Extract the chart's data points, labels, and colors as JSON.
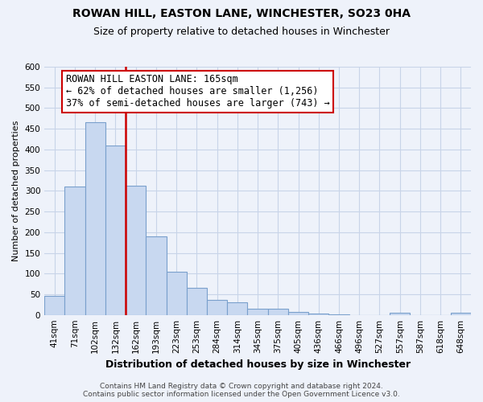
{
  "title": "ROWAN HILL, EASTON LANE, WINCHESTER, SO23 0HA",
  "subtitle": "Size of property relative to detached houses in Winchester",
  "xlabel": "Distribution of detached houses by size in Winchester",
  "ylabel": "Number of detached properties",
  "bar_values": [
    47,
    310,
    465,
    410,
    313,
    190,
    105,
    65,
    37,
    30,
    14,
    14,
    8,
    3,
    1,
    0,
    0,
    5,
    0,
    0,
    5
  ],
  "bin_labels": [
    "41sqm",
    "71sqm",
    "102sqm",
    "132sqm",
    "162sqm",
    "193sqm",
    "223sqm",
    "253sqm",
    "284sqm",
    "314sqm",
    "345sqm",
    "375sqm",
    "405sqm",
    "436sqm",
    "466sqm",
    "496sqm",
    "527sqm",
    "557sqm",
    "587sqm",
    "618sqm",
    "648sqm"
  ],
  "bar_color": "#c8d8f0",
  "bar_edge_color": "#7aa0cc",
  "property_line_index": 4,
  "property_line_color": "#cc0000",
  "annotation_text": "ROWAN HILL EASTON LANE: 165sqm\n← 62% of detached houses are smaller (1,256)\n37% of semi-detached houses are larger (743) →",
  "annotation_box_facecolor": "#ffffff",
  "annotation_box_edgecolor": "#cc0000",
  "ylim": [
    0,
    600
  ],
  "yticks": [
    0,
    50,
    100,
    150,
    200,
    250,
    300,
    350,
    400,
    450,
    500,
    550,
    600
  ],
  "grid_color": "#c8d4e8",
  "footer_line1": "Contains HM Land Registry data © Crown copyright and database right 2024.",
  "footer_line2": "Contains public sector information licensed under the Open Government Licence v3.0.",
  "bg_color": "#eef2fa",
  "title_fontsize": 10,
  "subtitle_fontsize": 9,
  "ylabel_fontsize": 8,
  "xlabel_fontsize": 9,
  "tick_fontsize": 7.5,
  "footer_fontsize": 6.5,
  "annotation_fontsize": 8.5
}
